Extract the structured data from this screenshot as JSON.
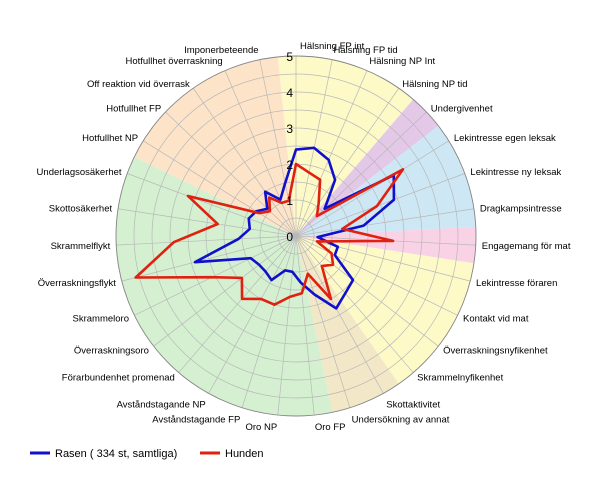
{
  "chart_data": {
    "type": "radar",
    "title": "",
    "axes": [
      "Hälsning FP int",
      "Hälsning FP tid",
      "Hälsning NP Int",
      "Hälsning NP tid",
      "Undergivenhet",
      "Lekintresse egen leksak",
      "Lekintresse ny leksak",
      "Dragkampsintresse",
      "Engagemang för mat",
      "Lekintresse föraren",
      "Kontakt vid mat",
      "Överraskningsnyfikenhet",
      "Skrammelnyfikenhet",
      "Skottaktivitet",
      "Undersökning av annat",
      "Oro FP",
      "Oro NP",
      "Avståndstagande FP",
      "Avståndstagande NP",
      "Förarbundenhet promenad",
      "Överraskningsoro",
      "Skrammeloro",
      "Överraskningsflykt",
      "Skrammelflykt",
      "Skottosäkerhet",
      "Underlagsosäkerhet",
      "Hotfullhet NP",
      "Hotfullhet FP",
      "Off reaktion vid överrask",
      "Hotfullhet överraskning",
      "Imponerbeteende"
    ],
    "rlim": [
      0,
      5
    ],
    "ticks": [
      1,
      2,
      3,
      4,
      5
    ],
    "tick_labels": [
      "1",
      "2",
      "3",
      "4",
      "5"
    ],
    "grid": true,
    "legend_position": "bottom-left",
    "series": [
      {
        "name": "Rasen ( 334 st, samtliga)",
        "color": "#1010cc",
        "values": [
          2.4,
          2.5,
          2.3,
          1.9,
          1.1,
          3.2,
          2.9,
          1.9,
          0.6,
          1.2,
          1.2,
          2.0,
          2.1,
          2.3,
          1.7,
          1.3,
          1.0,
          1.0,
          1.4,
          1.3,
          1.3,
          1.4,
          2.9,
          1.6,
          1.3,
          1.4,
          1.3,
          1.1,
          1.5,
          1.1,
          1.5
        ]
      },
      {
        "name": "Hunden",
        "color": "#e02010",
        "values": [
          2.0,
          1.8,
          1.7,
          1.1,
          0.8,
          3.5,
          2.4,
          1.3,
          2.7,
          0.6,
          1.1,
          1.3,
          1.1,
          2.0,
          1.1,
          1.6,
          1.7,
          2.0,
          2.0,
          2.3,
          1.9,
          2.6,
          4.6,
          3.4,
          2.2,
          3.2,
          1.2,
          1.0,
          1.3,
          1.0,
          1.0
        ]
      }
    ]
  }
}
